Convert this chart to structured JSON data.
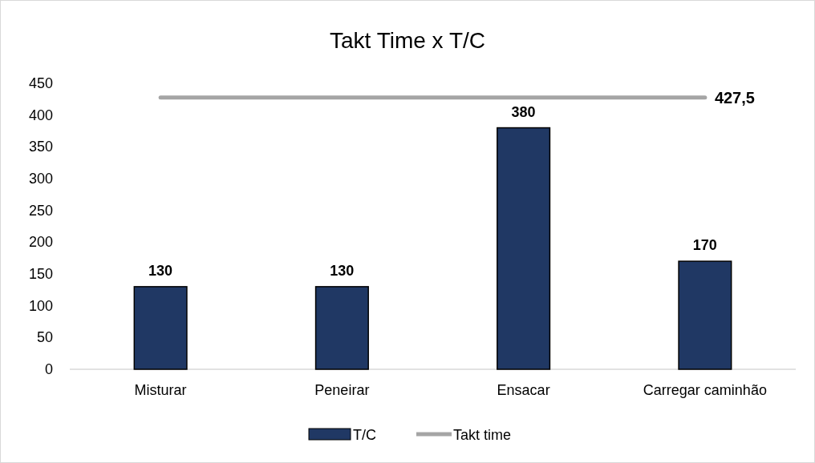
{
  "chart_data": {
    "type": "bar",
    "title": "Takt Time x T/C",
    "categories": [
      "Misturar",
      "Peneirar",
      "Ensacar",
      "Carregar caminhão"
    ],
    "series": [
      {
        "name": "T/C",
        "color": "#203864",
        "values": [
          130,
          130,
          380,
          170
        ],
        "value_labels": [
          "130",
          "130",
          "380",
          "170"
        ]
      },
      {
        "name": "Takt time",
        "type": "line",
        "color": "#a5a5a5",
        "values": [
          427.5,
          427.5,
          427.5,
          427.5
        ],
        "value_labels": [
          null,
          null,
          null,
          "427,5"
        ]
      }
    ],
    "ylim": [
      0,
      450
    ],
    "yticks": [
      0,
      50,
      100,
      150,
      200,
      250,
      300,
      350,
      400,
      450
    ],
    "grid": false,
    "legend": "bottom",
    "marker": "none"
  }
}
